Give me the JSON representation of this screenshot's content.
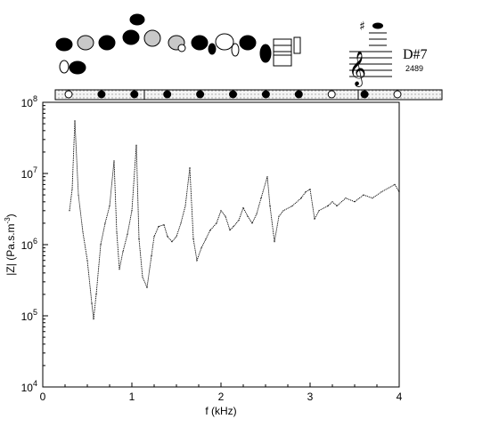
{
  "note": {
    "name": "D#7",
    "frequency": "2489",
    "accidental": "♯",
    "clef": "𝄞"
  },
  "fingering": {
    "keys_top": [
      "closed",
      "half",
      "closed",
      "closed",
      "half",
      "half",
      "closed",
      "ring-open",
      "closed",
      "closed"
    ],
    "bar_holes": [
      "open",
      "closed",
      "closed",
      "closed",
      "closed",
      "closed",
      "closed",
      "closed",
      "open",
      "closed",
      "open"
    ],
    "colors": {
      "closed": "#000000",
      "open": "#ffffff",
      "half": "#c8c8c8"
    }
  },
  "chart_data": {
    "type": "line",
    "xlabel": "f (kHz)",
    "ylabel_main": "|Z| (Pa.s.m",
    "ylabel_sup": "-3",
    "ylabel_close": ")",
    "yscale": "log",
    "xlim": [
      0,
      4
    ],
    "ylim": [
      10000,
      100000000
    ],
    "xticks": [
      0,
      1,
      2,
      3,
      4
    ],
    "yticks": [
      {
        "value": 10000,
        "base": "10",
        "exp": "4"
      },
      {
        "value": 100000,
        "base": "10",
        "exp": "5"
      },
      {
        "value": 1000000,
        "base": "10",
        "exp": "6"
      },
      {
        "value": 10000000,
        "base": "10",
        "exp": "7"
      },
      {
        "value": 100000000,
        "base": "10",
        "exp": "8"
      }
    ],
    "series": [
      {
        "x": [
          0.3,
          0.33,
          0.36,
          0.4,
          0.45,
          0.5,
          0.55,
          0.57,
          0.6,
          0.65,
          0.7,
          0.75,
          0.8,
          0.83,
          0.86,
          0.9,
          0.95,
          1.0,
          1.05,
          1.08,
          1.12,
          1.17,
          1.22,
          1.25,
          1.3,
          1.36,
          1.4,
          1.45,
          1.5,
          1.55,
          1.6,
          1.65,
          1.69,
          1.73,
          1.78,
          1.83,
          1.88,
          1.95,
          2.0,
          2.05,
          2.1,
          2.14,
          2.2,
          2.25,
          2.3,
          2.35,
          2.4,
          2.45,
          2.52,
          2.55,
          2.6,
          2.65,
          2.7,
          2.8,
          2.9,
          2.95,
          3.0,
          3.05,
          3.1,
          3.2,
          3.25,
          3.3,
          3.4,
          3.5,
          3.6,
          3.7,
          3.8,
          3.95,
          4.0
        ],
        "y": [
          3000000,
          6000000,
          55000000,
          5000000,
          1500000,
          600000,
          150000,
          90000,
          200000,
          1000000,
          2000000,
          3500000,
          15000000,
          1500000,
          450000,
          800000,
          1400000,
          3000000,
          25000000,
          1200000,
          350000,
          250000,
          700000,
          1300000,
          1800000,
          1900000,
          1300000,
          1100000,
          1300000,
          2000000,
          3500000,
          12000000,
          1200000,
          600000,
          900000,
          1200000,
          1600000,
          2000000,
          3000000,
          2500000,
          1600000,
          1800000,
          2200000,
          3300000,
          2500000,
          2000000,
          2700000,
          4500000,
          9000000,
          3500000,
          1100000,
          2500000,
          3000000,
          3500000,
          4500000,
          5500000,
          6000000,
          2300000,
          3000000,
          3500000,
          4000000,
          3500000,
          4500000,
          4000000,
          5000000,
          4500000,
          5500000,
          7000000,
          5500000
        ]
      }
    ]
  }
}
